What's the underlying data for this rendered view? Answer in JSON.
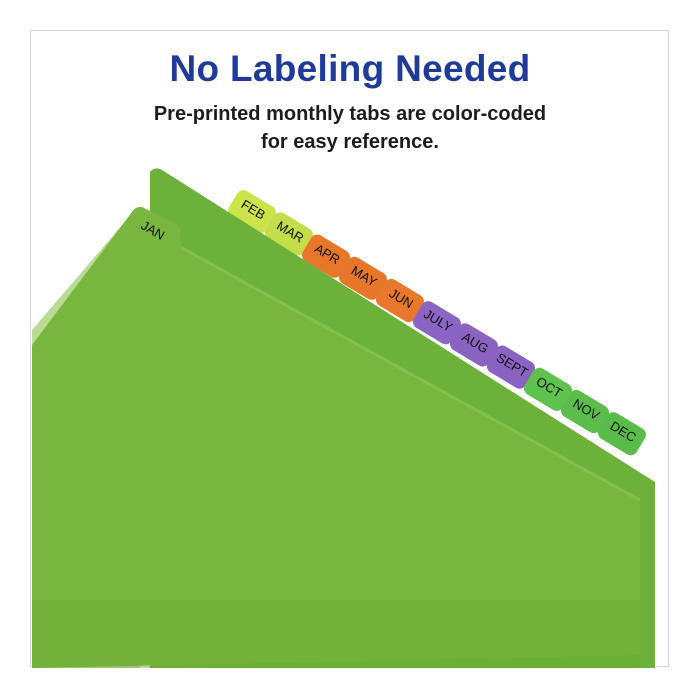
{
  "headline": "No Labeling Needed",
  "subtitle_line1": "Pre-printed monthly tabs are color-coded",
  "subtitle_line2": "for easy reference.",
  "colors": {
    "headline": "#1f3b99",
    "folder": "#76b43c",
    "yellow_green": "#c8e04a",
    "orange": "#e8782a",
    "purple": "#8a62c2",
    "green": "#5cc04a"
  },
  "tabs": [
    {
      "label": "JAN",
      "color": "#6fb23a"
    },
    {
      "label": "FEB",
      "color": "#cde34c"
    },
    {
      "label": "MAR",
      "color": "#c3de4a"
    },
    {
      "label": "APR",
      "color": "#e8772a"
    },
    {
      "label": "MAY",
      "color": "#e7762b"
    },
    {
      "label": "JUN",
      "color": "#e8782c"
    },
    {
      "label": "JULY",
      "color": "#8b64c4"
    },
    {
      "label": "AUG",
      "color": "#8a63c2"
    },
    {
      "label": "SEPT",
      "color": "#8a62c2"
    },
    {
      "label": "OCT",
      "color": "#5fc24c"
    },
    {
      "label": "NOV",
      "color": "#5cbe4a"
    },
    {
      "label": "DEC",
      "color": "#5abc48"
    }
  ]
}
